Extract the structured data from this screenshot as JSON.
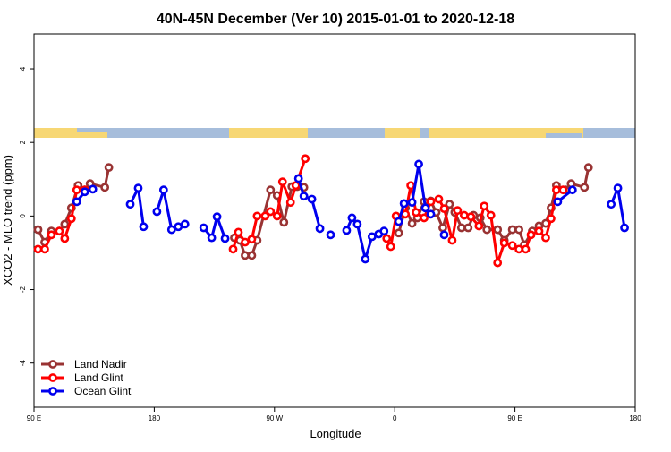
{
  "chart_data": {
    "type": "line",
    "title": "40N-45N December (Ver 10)   2015-01-01 to 2020-12-18",
    "x_label": "Longitude",
    "y_label": "XCO2 - MLO trend (ppm)",
    "xlim": [
      90,
      540
    ],
    "ylim": [
      -5.2,
      4.95
    ],
    "xticks": [
      {
        "value": 90,
        "label": "90 E"
      },
      180,
      {
        "value": 270,
        "label": "90 W"
      },
      {
        "value": 360,
        "label": "0"
      },
      {
        "value": 450,
        "label": "90 E"
      },
      {
        "value": 540,
        "label": "180"
      }
    ],
    "yticks": [
      -4,
      -2,
      0,
      2,
      4
    ],
    "legend": "bottom-left",
    "series": [
      {
        "name": "Land Nadir",
        "color": "#993333",
        "x": [
          93,
          98,
          103,
          109,
          113,
          118,
          123,
          128,
          132,
          143,
          146,
          null,
          240,
          244,
          248,
          253,
          257,
          267,
          272,
          277,
          283,
          287,
          292,
          null,
          363,
          368,
          373,
          377,
          382,
          387,
          391,
          396,
          401,
          405,
          410,
          415,
          419,
          424,
          429,
          437,
          442,
          448,
          453,
          457,
          463,
          468,
          473,
          477,
          481,
          488,
          492,
          502,
          505
        ],
        "values": [
          -0.37,
          -0.71,
          -0.41,
          -0.41,
          -0.22,
          0.22,
          0.83,
          0.71,
          0.88,
          0.78,
          1.32,
          null,
          -0.59,
          -0.66,
          -1.07,
          -1.07,
          -0.66,
          0.71,
          0.56,
          -0.17,
          0.8,
          0.8,
          0.78,
          null,
          -0.46,
          0.22,
          -0.2,
          -0.05,
          0.39,
          0.41,
          0.1,
          -0.32,
          0.32,
          0.1,
          -0.32,
          -0.32,
          0.02,
          -0.05,
          -0.37,
          -0.37,
          -0.66,
          -0.37,
          -0.37,
          -0.78,
          -0.41,
          -0.27,
          -0.2,
          0.22,
          0.83,
          0.71,
          0.88,
          0.78,
          1.32
        ]
      },
      {
        "name": "Land Glint",
        "color": "#ff0000",
        "x": [
          93,
          98,
          103,
          109,
          113,
          118,
          122,
          128,
          null,
          239,
          243,
          248,
          253,
          257,
          263,
          267,
          272,
          276,
          282,
          286,
          293,
          null,
          354,
          357,
          361,
          368,
          372,
          376,
          382,
          387,
          393,
          397,
          403,
          407,
          412,
          417,
          423,
          427,
          432,
          437,
          442,
          448,
          453,
          458,
          462,
          468,
          473,
          477,
          481,
          486
        ],
        "values": [
          -0.9,
          -0.9,
          -0.51,
          -0.41,
          -0.61,
          -0.07,
          0.71,
          0.71,
          null,
          -0.9,
          -0.44,
          -0.71,
          -0.63,
          0,
          0,
          0.12,
          0,
          0.93,
          0.37,
          0.83,
          1.56,
          null,
          -0.61,
          -0.83,
          0,
          0.05,
          0.83,
          0.1,
          -0.05,
          0.39,
          0.46,
          0.2,
          -0.66,
          0.15,
          0.02,
          -0.02,
          -0.27,
          0.27,
          0.02,
          -1.27,
          -0.73,
          -0.8,
          -0.9,
          -0.9,
          -0.51,
          -0.41,
          -0.59,
          -0.07,
          0.71,
          0.71
        ]
      },
      {
        "name": "Ocean Glint",
        "color": "#0000ee",
        "x": [
          122,
          128,
          134,
          null,
          162,
          168,
          172,
          null,
          182,
          187,
          193,
          198,
          203,
          null,
          217,
          223,
          227,
          233,
          null,
          288,
          292,
          298,
          304,
          null,
          312,
          null,
          324,
          328,
          332,
          338,
          343,
          348,
          352,
          null,
          363,
          367,
          373,
          378,
          383,
          387,
          null,
          397,
          null,
          482,
          493,
          null,
          522,
          527,
          532
        ],
        "values": [
          0.39,
          0.66,
          0.73,
          null,
          0.32,
          0.76,
          -0.29,
          null,
          0.12,
          0.71,
          -0.37,
          -0.29,
          -0.22,
          null,
          -0.32,
          -0.59,
          -0.02,
          -0.61,
          null,
          1.02,
          0.54,
          0.46,
          -0.34,
          null,
          -0.51,
          null,
          -0.39,
          -0.05,
          -0.22,
          -1.17,
          -0.56,
          -0.49,
          -0.41,
          null,
          -0.15,
          0.34,
          0.37,
          1.41,
          0.22,
          0.05,
          null,
          -0.51,
          null,
          0.39,
          0.71,
          null,
          0.32,
          0.76,
          -0.32
        ]
      }
    ]
  }
}
